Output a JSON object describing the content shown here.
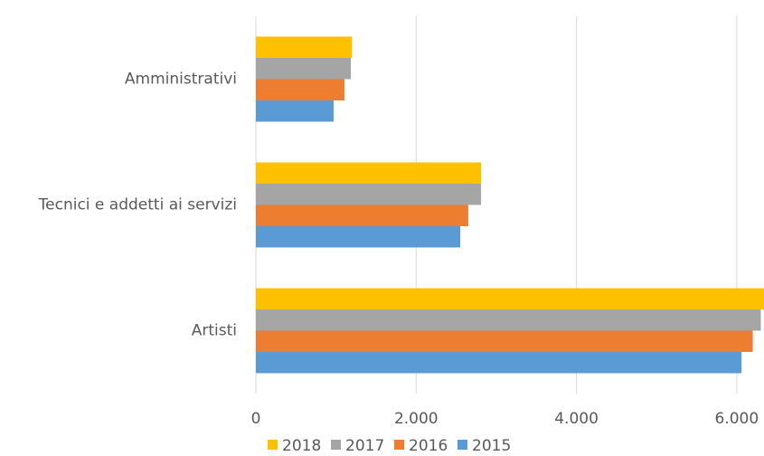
{
  "chart_data": {
    "type": "hbar",
    "categories": [
      "Amministrativi",
      "Tecnici e addetti ai servizi",
      "Artisti"
    ],
    "series": [
      {
        "name": "2018",
        "color": "#ffc000",
        "values": [
          1200,
          2810,
          6340
        ]
      },
      {
        "name": "2017",
        "color": "#a5a5a5",
        "values": [
          1185,
          2810,
          6300
        ]
      },
      {
        "name": "2016",
        "color": "#ed7d31",
        "values": [
          1105,
          2650,
          6200
        ]
      },
      {
        "name": "2015",
        "color": "#5b9bd5",
        "values": [
          970,
          2550,
          6060
        ]
      }
    ],
    "xlim": [
      0,
      6340
    ],
    "xticks": [
      0,
      {
        "value": 2000,
        "label": "2.000"
      },
      {
        "value": 4000,
        "label": "4.000"
      },
      {
        "value": 6000,
        "label": "6.000"
      }
    ],
    "grid": true,
    "legend": "bottom"
  }
}
